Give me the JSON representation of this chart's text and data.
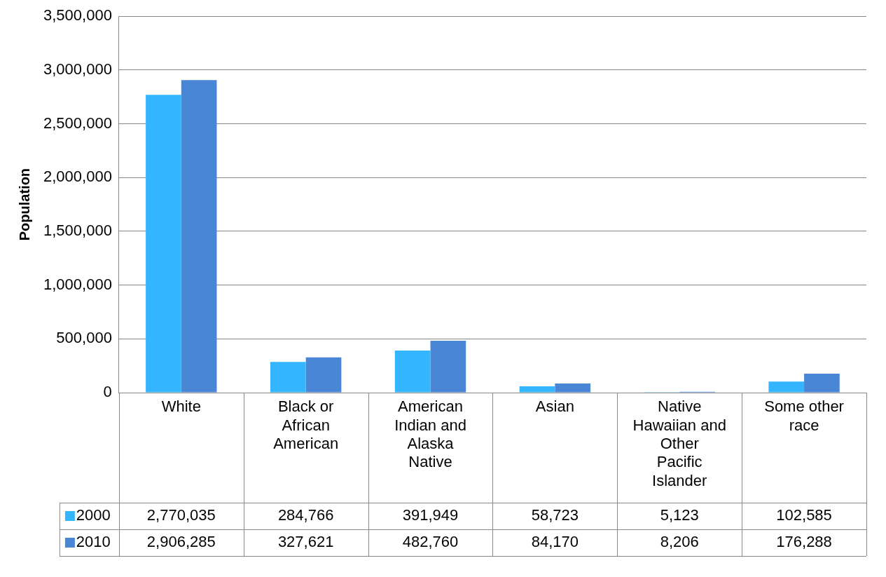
{
  "chart_data": {
    "type": "bar",
    "ylabel": "Population",
    "categories": [
      "White",
      "Black or African American",
      "American Indian and Alaska Native",
      "Asian",
      "Native Hawaiian and Other Pacific Islander",
      "Some other race"
    ],
    "series": [
      {
        "name": "2000",
        "color": "#33b5ff",
        "values": [
          2770035,
          284766,
          391949,
          58723,
          5123,
          102585
        ],
        "value_labels": [
          "2,770,035",
          "284,766",
          "391,949",
          "58,723",
          "5,123",
          "102,585"
        ]
      },
      {
        "name": "2010",
        "color": "#4a86d6",
        "values": [
          2906285,
          327621,
          482760,
          84170,
          8206,
          176288
        ],
        "value_labels": [
          "2,906,285",
          "327,621",
          "482,760",
          "84,170",
          "8,206",
          "176,288"
        ]
      }
    ],
    "ylim": [
      0,
      3500000
    ],
    "yticks": [
      0,
      {
        "value": 500000,
        "label": "500,000"
      },
      {
        "value": 1000000,
        "label": "1,000,000"
      },
      {
        "value": 1500000,
        "label": "1,500,000"
      },
      {
        "value": 2000000,
        "label": "2,000,000"
      },
      {
        "value": 2500000,
        "label": "2,500,000"
      },
      {
        "value": 3000000,
        "label": "3,000,000"
      },
      {
        "value": 3500000,
        "label": "3,500,000"
      }
    ],
    "grid": "y",
    "legend": "bottom left"
  }
}
